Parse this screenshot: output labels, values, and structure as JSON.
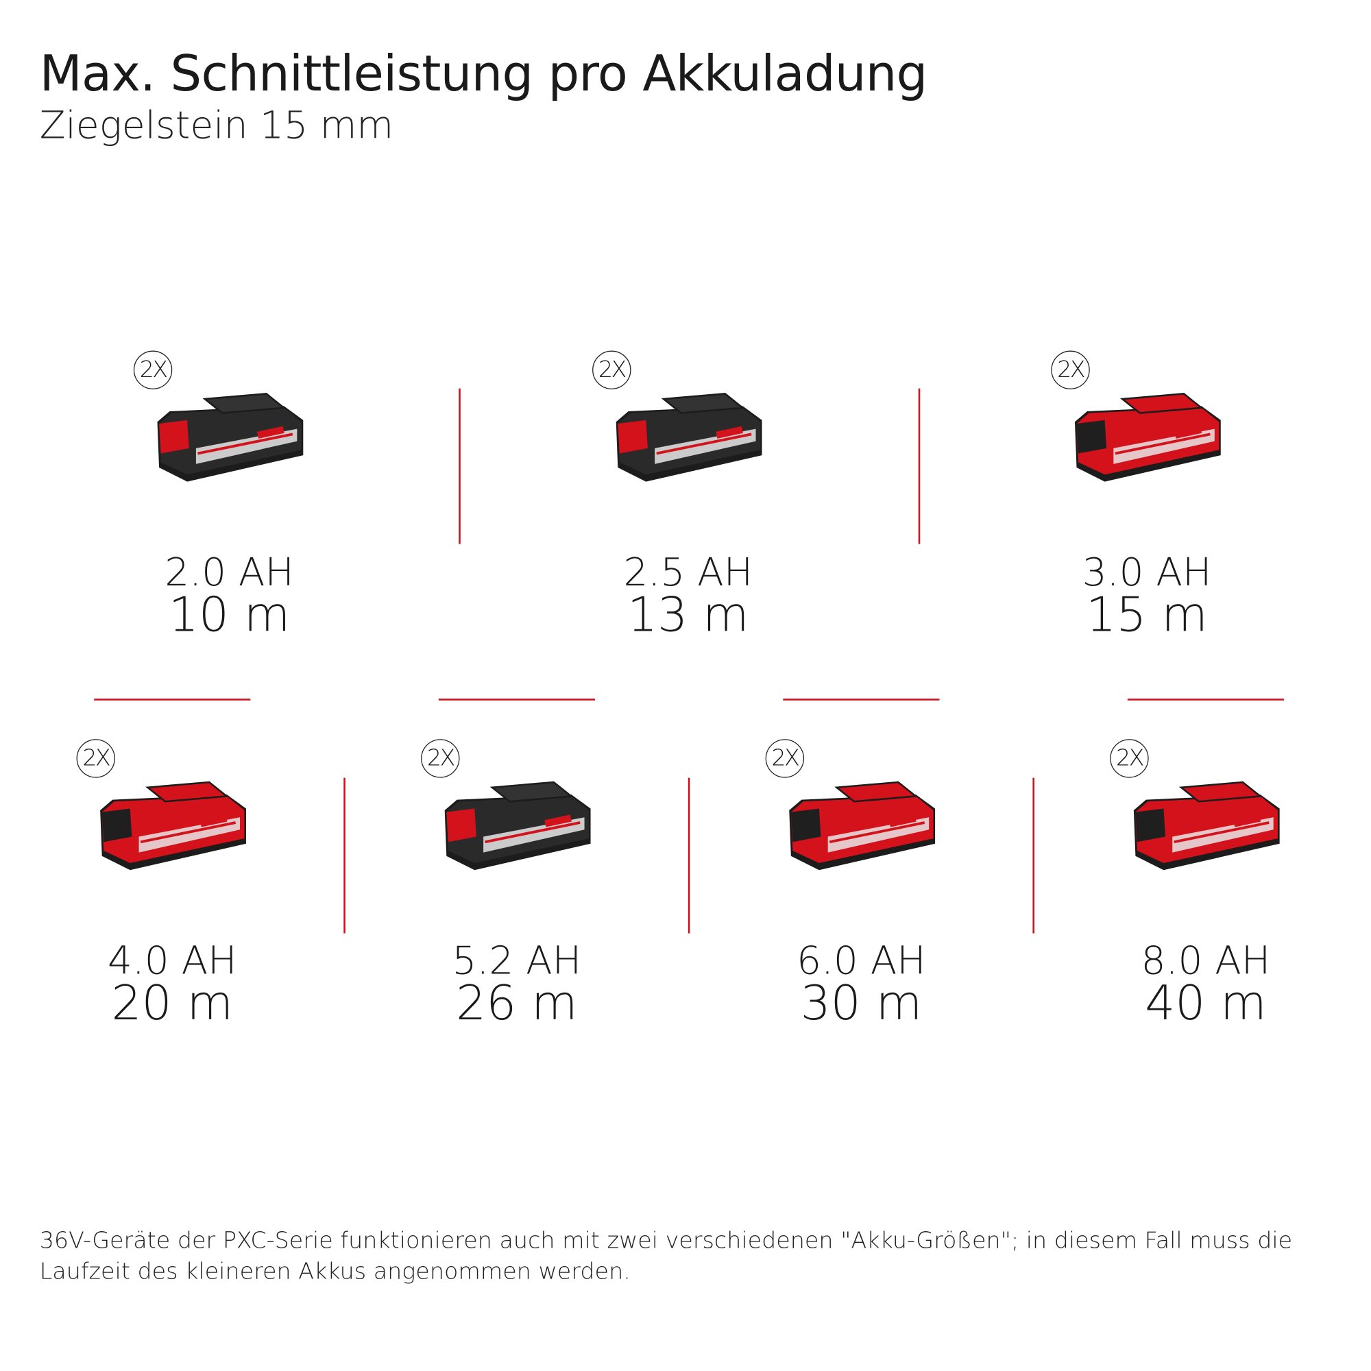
{
  "header": {
    "title": "Max. Schnittleistung pro Akkuladung",
    "subtitle": "Ziegelstein 15 mm"
  },
  "colors": {
    "accent": "#d0101c",
    "battery_red": "#d3121b",
    "battery_black": "#1c1c1c"
  },
  "batteries": [
    {
      "capacity": "2.0 AH",
      "runtime": "10 m",
      "quantity": "2X",
      "body": "black"
    },
    {
      "capacity": "2.5 AH",
      "runtime": "13 m",
      "quantity": "2X",
      "body": "black"
    },
    {
      "capacity": "3.0 AH",
      "runtime": "15 m",
      "quantity": "2X",
      "body": "red"
    },
    {
      "capacity": "4.0 AH",
      "runtime": "20 m",
      "quantity": "2X",
      "body": "red"
    },
    {
      "capacity": "5.2 AH",
      "runtime": "26 m",
      "quantity": "2X",
      "body": "black"
    },
    {
      "capacity": "6.0 AH",
      "runtime": "30 m",
      "quantity": "2X",
      "body": "red"
    },
    {
      "capacity": "8.0 AH",
      "runtime": "40 m",
      "quantity": "2X",
      "body": "red"
    }
  ],
  "footnote": "36V-Geräte der PXC-Serie funktionieren auch mit zwei verschiedenen \"Akku-Größen\"; in diesem Fall muss die Laufzeit des kleineren Akkus angenommen werden."
}
